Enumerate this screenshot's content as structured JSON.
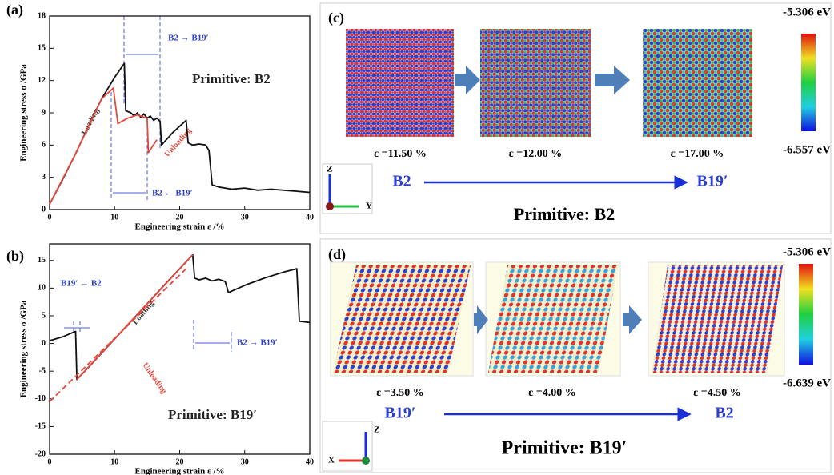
{
  "chart_data": [
    {
      "type": "line",
      "label": "(a)",
      "xlabel": "Engineering strain ε /%",
      "ylabel": "Engineering stress σ /GPa",
      "xlim": [
        0,
        40
      ],
      "xticks": [
        0,
        10,
        20,
        30,
        40
      ],
      "ylim": [
        0,
        18
      ],
      "yticks": [
        0,
        3,
        6,
        9,
        12,
        15,
        18
      ],
      "annotations": [
        "Primitive: B2",
        "B2 → B19′",
        "B2 ← B19′",
        "Loading",
        "Unloading"
      ],
      "series": [
        {
          "color": "#111111",
          "x": [
            0,
            2,
            4,
            6,
            8,
            10,
            11.5,
            11.7,
            12.5,
            13,
            13.5,
            14,
            14.5,
            15,
            15.5,
            16,
            16.5,
            17,
            17.2,
            19,
            21,
            21.3,
            22,
            23,
            24,
            24.5,
            25,
            26,
            28,
            30,
            32,
            34,
            36,
            38,
            40
          ],
          "values": [
            0.5,
            2.8,
            5.2,
            7.8,
            10.3,
            12.3,
            13.6,
            9.2,
            9.0,
            8.7,
            9.0,
            8.6,
            8.9,
            8.5,
            8.7,
            8.3,
            8.5,
            8.2,
            6.0,
            7.2,
            8.3,
            6.2,
            6.0,
            6.1,
            6.0,
            5.5,
            2.3,
            2.1,
            1.9,
            2.0,
            1.8,
            1.9,
            1.8,
            1.7,
            1.6
          ]
        },
        {
          "color": "#e8473c",
          "x": [
            0,
            4,
            8,
            9.8,
            10.5,
            12,
            13.5,
            15,
            15.2,
            16.5
          ],
          "values": [
            0.5,
            5.2,
            10.3,
            11.3,
            8.0,
            8.5,
            8.8,
            8.5,
            5.3,
            6.5
          ]
        }
      ]
    },
    {
      "type": "line",
      "label": "(b)",
      "xlabel": "Engineering strain ε /%",
      "ylabel": "Engineering stress σ /GPa",
      "xlim": [
        0,
        40
      ],
      "xticks": [
        0,
        10,
        20,
        30,
        40
      ],
      "ylim": [
        -20,
        18
      ],
      "yticks": [
        -20,
        -15,
        -10,
        -5,
        0,
        5,
        10,
        15
      ],
      "annotations": [
        "Primitive: B19′",
        "B19′ → B2",
        "B2 → B19′",
        "Loading",
        "Unloading"
      ],
      "series": [
        {
          "color": "#111111",
          "x": [
            0,
            2,
            4,
            4.2,
            6,
            10,
            14,
            18,
            22,
            22.3,
            23,
            24,
            25,
            26,
            27,
            27.5,
            30,
            33,
            36,
            38,
            38.4,
            40
          ],
          "values": [
            0.5,
            1.2,
            2.2,
            -6.5,
            -4.3,
            0.8,
            5.9,
            11.0,
            16.0,
            11.8,
            11.5,
            11.8,
            11.3,
            11.6,
            11.2,
            9.2,
            10.5,
            11.8,
            12.9,
            13.5,
            4.0,
            3.8
          ]
        },
        {
          "color": "#e8473c",
          "x": [
            4.2,
            22
          ],
          "values": [
            -6.5,
            16
          ]
        },
        {
          "color": "#e8473c",
          "dashed": true,
          "x": [
            21,
            0
          ],
          "values": [
            13.5,
            -10.5
          ]
        }
      ]
    }
  ],
  "panel_c": {
    "label": "(c)",
    "colorbar_max": "-5.306 eV",
    "colorbar_min": "-6.557 eV",
    "strains": [
      "ε =11.50 %",
      "ε =12.00 %",
      "ε =17.00 %"
    ],
    "from": "B2",
    "to": "B19′",
    "title": "Primitive: B2",
    "axes": [
      "Z",
      "Y"
    ]
  },
  "panel_d": {
    "label": "(d)",
    "colorbar_max": "-5.306 eV",
    "colorbar_min": "-6.639 eV",
    "strains": [
      "ε =3.50 %",
      "ε =4.00 %",
      "ε =4.50 %"
    ],
    "from": "B19′",
    "to": "B2",
    "title": "Primitive: B19′",
    "axes": [
      "Z",
      "X"
    ]
  }
}
